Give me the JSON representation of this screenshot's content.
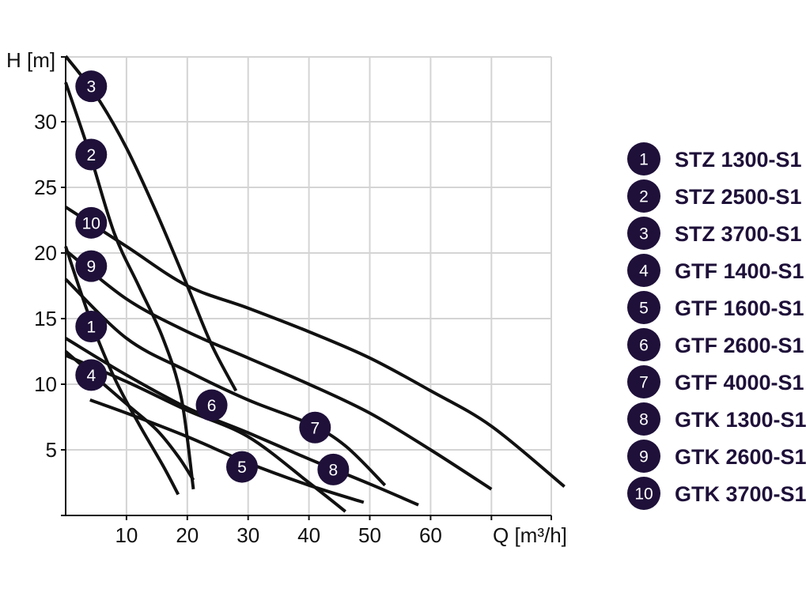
{
  "chart_data": {
    "type": "line",
    "ylabel": "H [m]",
    "xlabel": "Q [m³/h]",
    "xlim": [
      0,
      80
    ],
    "ylim": [
      0,
      35
    ],
    "x_ticks": [
      10,
      20,
      30,
      40,
      50,
      60
    ],
    "y_ticks": [
      5,
      10,
      15,
      20,
      25,
      30
    ],
    "grid": true,
    "legend_position": "right",
    "colors": {
      "curve": "#111111",
      "badge": "#1e1039",
      "grid": "#d4d4d4",
      "badge_text": "#ffffff"
    },
    "series": [
      {
        "marker": "1",
        "name": "STZ 1300-S1",
        "label_at": [
          4.2,
          14.4
        ],
        "x": [
          0,
          4,
          8,
          12,
          16,
          18.5
        ],
        "y": [
          20.5,
          15.0,
          10.5,
          7.0,
          3.8,
          1.6
        ]
      },
      {
        "marker": "2",
        "name": "STZ 2500-S1",
        "label_at": [
          4.2,
          27.5
        ],
        "x": [
          0,
          4,
          8,
          12,
          16,
          19,
          21
        ],
        "y": [
          33.0,
          27.5,
          21.5,
          17.5,
          13.5,
          9.0,
          2.0
        ]
      },
      {
        "marker": "3",
        "name": "STZ 3700-S1",
        "label_at": [
          4.2,
          32.7
        ],
        "x": [
          0,
          5,
          10,
          15,
          20,
          24,
          28
        ],
        "y": [
          35.0,
          32.0,
          28.0,
          23.0,
          17.5,
          13.0,
          9.5
        ]
      },
      {
        "marker": "4",
        "name": "GTF 1400-S1",
        "label_at": [
          4.2,
          10.7
        ],
        "x": [
          0,
          5,
          10,
          15,
          18.5,
          21
        ],
        "y": [
          12.5,
          10.5,
          8.5,
          6.5,
          4.5,
          2.7
        ]
      },
      {
        "marker": "5",
        "name": "GTF 1600-S1",
        "label_at": [
          29,
          3.7
        ],
        "x": [
          4,
          10,
          20,
          30,
          40,
          49
        ],
        "y": [
          8.8,
          7.8,
          6.0,
          4.0,
          2.3,
          1.0
        ]
      },
      {
        "marker": "6",
        "name": "GTF 2600-S1",
        "label_at": [
          24,
          8.4
        ],
        "x": [
          0,
          10,
          20,
          30,
          40,
          46
        ],
        "y": [
          12.2,
          10.2,
          8.0,
          6.0,
          2.5,
          0.3
        ]
      },
      {
        "marker": "7",
        "name": "GTF 4000-S1",
        "label_at": [
          41,
          6.7
        ],
        "x": [
          0,
          10,
          20,
          30,
          40,
          46,
          52.5
        ],
        "y": [
          18.0,
          13.5,
          11.0,
          8.8,
          7.0,
          5.3,
          2.3
        ]
      },
      {
        "marker": "8",
        "name": "GTK 1300-S1",
        "label_at": [
          44,
          3.5
        ],
        "x": [
          0,
          10,
          20,
          30,
          40,
          50,
          58
        ],
        "y": [
          13.5,
          10.7,
          8.2,
          6.3,
          4.3,
          2.4,
          0.8
        ]
      },
      {
        "marker": "9",
        "name": "GTK 2600-S1",
        "label_at": [
          4.2,
          19.0
        ],
        "x": [
          0,
          10,
          20,
          30,
          40,
          50,
          60,
          70
        ],
        "y": [
          20.2,
          16.5,
          14.0,
          12.0,
          10.0,
          7.8,
          5.0,
          2.0
        ]
      },
      {
        "marker": "10",
        "name": "GTK 3700-S1",
        "label_at": [
          4.2,
          22.3
        ],
        "x": [
          0,
          10,
          20,
          30,
          40,
          50,
          60,
          70,
          82
        ],
        "y": [
          23.5,
          20.5,
          17.5,
          15.8,
          14.0,
          12.0,
          9.5,
          6.8,
          2.2
        ]
      }
    ]
  }
}
